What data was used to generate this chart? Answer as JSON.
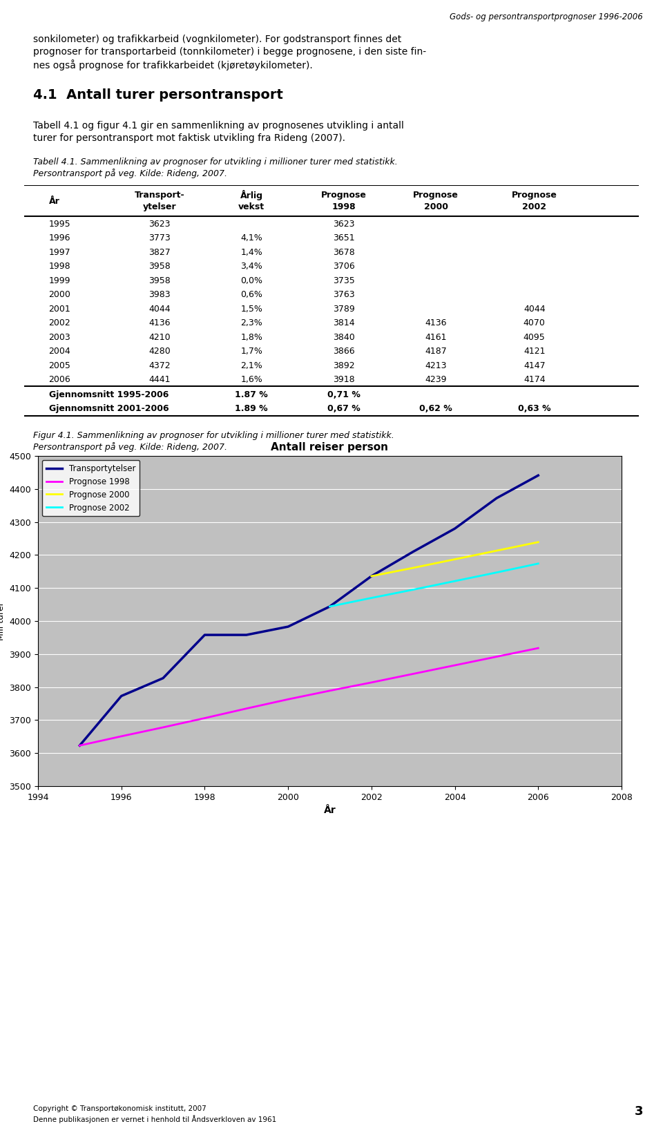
{
  "page_title": "Gods- og persontransportprognoser 1996-2006",
  "section_title": "4.1  Antall turer persontransport",
  "intro_line1": "sonkilometer) og trafikkarbeid (vognkilometer). For godstransport finnes det",
  "intro_line2": "prognoser for transportarbeid (tonnkilometer) i begge prognosene, i den siste fin-",
  "intro_line3": "nes også prognose for trafikkarbeidet (kjøretøykilometer).",
  "body_line1": "Tabell 4.1 og figur 4.1 gir en sammenlikning av prognosenes utvikling i antall",
  "body_line2": "turer for persontransport mot faktisk utvikling fra Rideng (2007).",
  "table_caption_line1": "Tabell 4.1. Sammenlikning av prognoser for utvikling i millioner turer med statistikk.",
  "table_caption_line2": "Persontransport på veg. Kilde: Rideng, 2007.",
  "figure_caption_line1": "Figur 4.1. Sammenlikning av prognoser for utvikling i millioner turer med statistikk.",
  "figure_caption_line2": "Persontransport på veg. Kilde: Rideng, 2007.",
  "footer_line1": "Copyright © Transportøkonomisk institutt, 2007",
  "footer_line2": "Denne publikasjonen er vernet i henhold til Åndsverkloven av 1961",
  "footer_page": "3",
  "table_headers": [
    "År",
    "Transport-\nytelser",
    "Årlig\nvekst",
    "Prognose\n1998",
    "Prognose\n2000",
    "Prognose\n2002"
  ],
  "table_rows": [
    [
      "1995",
      "3623",
      "",
      "3623",
      "",
      ""
    ],
    [
      "1996",
      "3773",
      "4,1%",
      "3651",
      "",
      ""
    ],
    [
      "1997",
      "3827",
      "1,4%",
      "3678",
      "",
      ""
    ],
    [
      "1998",
      "3958",
      "3,4%",
      "3706",
      "",
      ""
    ],
    [
      "1999",
      "3958",
      "0,0%",
      "3735",
      "",
      ""
    ],
    [
      "2000",
      "3983",
      "0,6%",
      "3763",
      "",
      ""
    ],
    [
      "2001",
      "4044",
      "1,5%",
      "3789",
      "",
      "4044"
    ],
    [
      "2002",
      "4136",
      "2,3%",
      "3814",
      "4136",
      "4070"
    ],
    [
      "2003",
      "4210",
      "1,8%",
      "3840",
      "4161",
      "4095"
    ],
    [
      "2004",
      "4280",
      "1,7%",
      "3866",
      "4187",
      "4121"
    ],
    [
      "2005",
      "4372",
      "2,1%",
      "3892",
      "4213",
      "4147"
    ],
    [
      "2006",
      "4441",
      "1,6%",
      "3918",
      "4239",
      "4174"
    ]
  ],
  "table_summary_rows": [
    [
      "Gjennomsnitt 1995-2006",
      "",
      "1.87 %",
      "0,71 %",
      "",
      ""
    ],
    [
      "Gjennomsnitt 2001-2006",
      "",
      "1.89 %",
      "0,67 %",
      "0,62 %",
      "0,63 %"
    ]
  ],
  "chart_title": "Antall reiser person",
  "chart_ylabel": "Mill turer",
  "chart_xlabel": "År",
  "chart_xlim": [
    1994,
    2008
  ],
  "chart_ylim": [
    3500,
    4500
  ],
  "chart_yticks": [
    3500,
    3600,
    3700,
    3800,
    3900,
    4000,
    4100,
    4200,
    4300,
    4400,
    4500
  ],
  "chart_xticks": [
    1994,
    1996,
    1998,
    2000,
    2002,
    2004,
    2006,
    2008
  ],
  "chart_bg_color": "#C0C0C0",
  "series_transportytelser_years": [
    1995,
    1996,
    1997,
    1998,
    1999,
    2000,
    2001,
    2002,
    2003,
    2004,
    2005,
    2006
  ],
  "series_transportytelser_values": [
    3623,
    3773,
    3827,
    3958,
    3958,
    3983,
    4044,
    4136,
    4210,
    4280,
    4372,
    4441
  ],
  "series_transportytelser_color": "#00008B",
  "series_prognose1998_years": [
    1995,
    1996,
    1997,
    1998,
    1999,
    2000,
    2001,
    2002,
    2003,
    2004,
    2005,
    2006
  ],
  "series_prognose1998_values": [
    3623,
    3651,
    3678,
    3706,
    3735,
    3763,
    3789,
    3814,
    3840,
    3866,
    3892,
    3918
  ],
  "series_prognose1998_color": "#FF00FF",
  "series_prognose2000_years": [
    2002,
    2003,
    2004,
    2005,
    2006
  ],
  "series_prognose2000_values": [
    4136,
    4161,
    4187,
    4213,
    4239
  ],
  "series_prognose2000_color": "#FFFF00",
  "series_prognose2002_years": [
    2001,
    2002,
    2003,
    2004,
    2005,
    2006
  ],
  "series_prognose2002_values": [
    4044,
    4070,
    4095,
    4121,
    4147,
    4174
  ],
  "series_prognose2002_color": "#00FFFF"
}
